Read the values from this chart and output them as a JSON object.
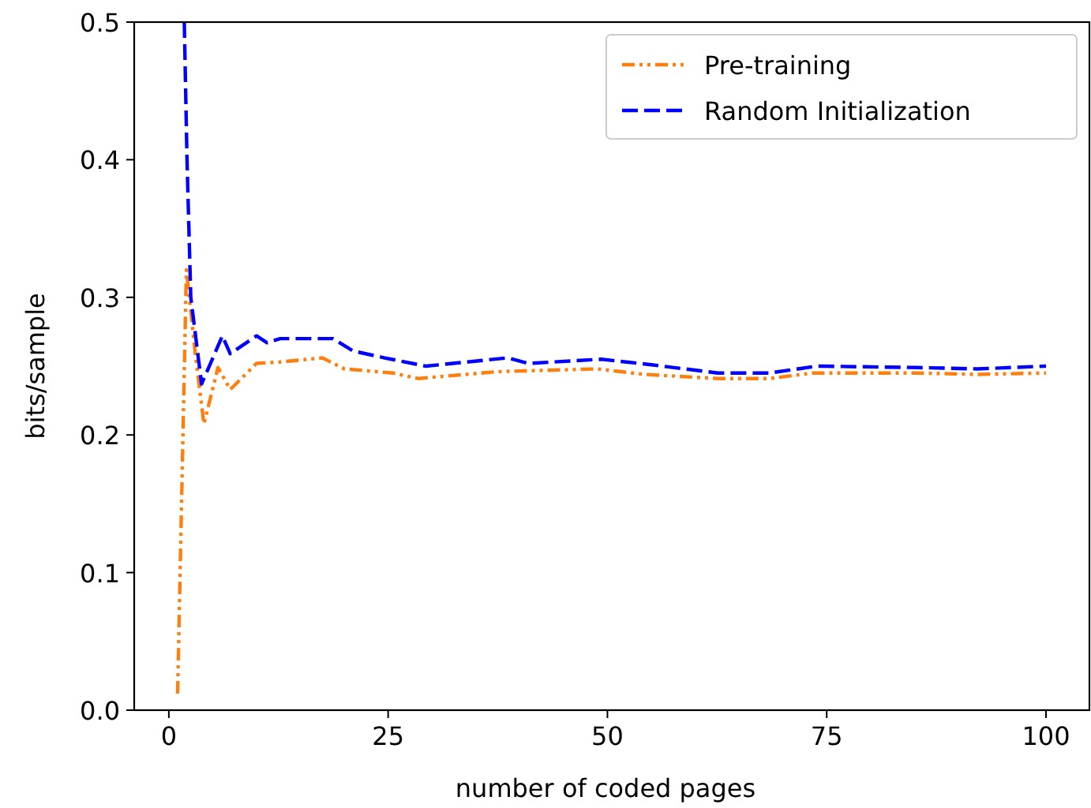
{
  "chart_data": {
    "type": "line",
    "xlabel": "number of coded pages",
    "ylabel": "bits/sample",
    "xlim": [
      -3.95,
      104.95
    ],
    "ylim": [
      0,
      0.5
    ],
    "xticks": [
      0,
      25,
      50,
      75,
      100
    ],
    "yticks": [
      {
        "value": 0,
        "label": "0.0"
      },
      {
        "value": 0.1,
        "label": "0.1"
      },
      {
        "value": 0.2,
        "label": "0.2"
      },
      {
        "value": 0.3,
        "label": "0.3"
      },
      {
        "value": 0.4,
        "label": "0.4"
      },
      {
        "value": 0.5,
        "label": "0.5"
      }
    ],
    "grid": false,
    "legend": "top right",
    "series": [
      {
        "name": "Pre-training",
        "color": "#ff7f0e",
        "line_style": "dashdot",
        "x": [
          1,
          2,
          3,
          4,
          5.6,
          7,
          10,
          12.7,
          17.5,
          20,
          25.5,
          28.4,
          37.5,
          48.8,
          54.2,
          62.6,
          68.5,
          73.4,
          85.2,
          92.2,
          100
        ],
        "values": [
          0.012,
          0.32,
          0.26,
          0.208,
          0.249,
          0.233,
          0.252,
          0.253,
          0.256,
          0.248,
          0.245,
          0.241,
          0.246,
          0.248,
          0.244,
          0.241,
          0.241,
          0.245,
          0.245,
          0.244,
          0.245
        ]
      },
      {
        "name": "Random Initialization",
        "color": "#0000ff",
        "line_style": "dashed",
        "x": [
          1.76,
          2.07,
          2.5,
          3.73,
          6.1,
          7,
          10,
          11.2,
          12.7,
          18.7,
          21,
          24.6,
          29.3,
          38.6,
          41,
          49.3,
          55,
          62.6,
          68.5,
          73.9,
          85.2,
          92.2,
          100
        ],
        "values": [
          0.5,
          0.4,
          0.3,
          0.237,
          0.272,
          0.259,
          0.272,
          0.267,
          0.27,
          0.27,
          0.261,
          0.256,
          0.25,
          0.256,
          0.252,
          0.255,
          0.251,
          0.245,
          0.245,
          0.25,
          0.249,
          0.248,
          0.25
        ]
      }
    ]
  }
}
